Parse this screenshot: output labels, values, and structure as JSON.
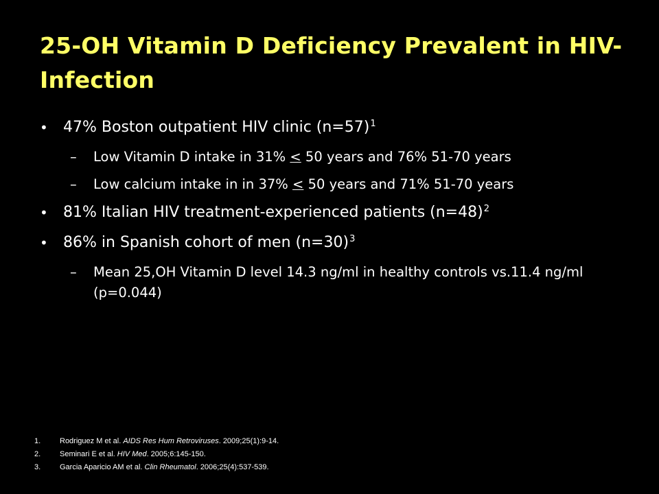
{
  "title": "25-OH Vitamin D Deficiency Prevalent in HIV-Infection",
  "colors": {
    "background": "#000000",
    "title": "#ffff66",
    "text": "#ffffff"
  },
  "bullets": [
    {
      "text": "47% Boston outpatient HIV clinic (n=57)",
      "sup": "1",
      "subs": [
        {
          "pre": "Low Vitamin D intake in 31% ",
          "u": "<",
          "post": " 50 years and 76% 51-70 years"
        },
        {
          "pre": "Low calcium intake in in 37% ",
          "u": "<",
          "post": " 50 years and 71% 51-70 years"
        }
      ]
    },
    {
      "text": "81% Italian HIV treatment-experienced patients (n=48)",
      "sup": "2"
    },
    {
      "text": "86% in Spanish cohort of men (n=30)",
      "sup": "3",
      "subs": [
        {
          "text": "Mean 25,OH Vitamin D level 14.3 ng/ml in healthy controls vs.11.4 ng/ml (p=0.044)"
        }
      ]
    }
  ],
  "bullet_symbol": "•",
  "dash_symbol": "–",
  "references": [
    {
      "num": "1.",
      "pre": "Rodriguez M et al. ",
      "journal": "AIDS Res Hum Retroviruses",
      "post": ". 2009;25(1):9-14."
    },
    {
      "num": "2.",
      "pre": "Seminari E et al. ",
      "journal": "HIV Med",
      "post": ". 2005;6:145-150."
    },
    {
      "num": "3.",
      "pre": "Garcia Aparicio AM et al. ",
      "journal": "Clin Rheumatol",
      "post": ". 2006;25(4):537-539."
    }
  ]
}
